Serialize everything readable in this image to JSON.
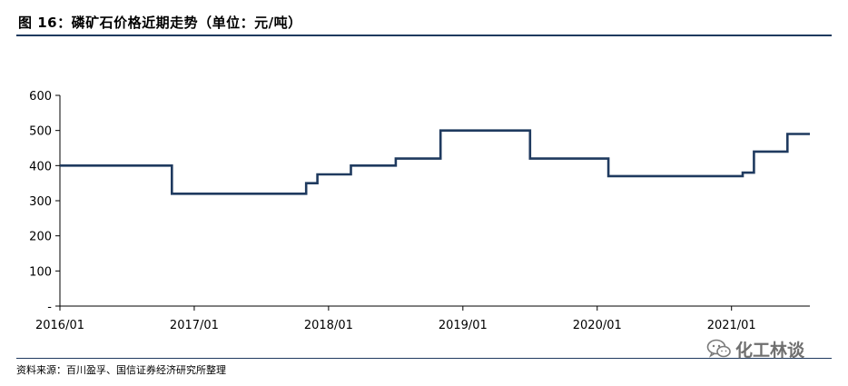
{
  "header": {
    "title": "图 16：磷矿石价格近期走势（单位：元/吨）"
  },
  "footer": {
    "source": "资料来源：百川盈孚、国信证券经济研究所整理"
  },
  "watermark": {
    "icon": "wechat-icon",
    "text": "化工林谈"
  },
  "chart_data": {
    "type": "line",
    "title": "",
    "xlabel": "",
    "ylabel": "",
    "ylim": [
      0,
      600
    ],
    "xlim": [
      "2016-01",
      "2021-08"
    ],
    "grid": false,
    "legend": "none",
    "line_color": "#1f3a5f",
    "y_ticks": [
      {
        "value": 0,
        "label": "-"
      },
      {
        "value": 100,
        "label": "100"
      },
      {
        "value": 200,
        "label": "200"
      },
      {
        "value": 300,
        "label": "300"
      },
      {
        "value": 400,
        "label": "400"
      },
      {
        "value": 500,
        "label": "500"
      },
      {
        "value": 600,
        "label": "600"
      }
    ],
    "x_ticks": [
      "2016/01",
      "2017/01",
      "2018/01",
      "2019/01",
      "2020/01",
      "2021/01"
    ],
    "series": [
      {
        "name": "",
        "step": true,
        "points": [
          {
            "x": "2016-01",
            "y": 400
          },
          {
            "x": "2016-11",
            "y": 320
          },
          {
            "x": "2017-11",
            "y": 350
          },
          {
            "x": "2017-12",
            "y": 375
          },
          {
            "x": "2018-03",
            "y": 400
          },
          {
            "x": "2018-07",
            "y": 420
          },
          {
            "x": "2018-11",
            "y": 500
          },
          {
            "x": "2019-07",
            "y": 420
          },
          {
            "x": "2020-02",
            "y": 370
          },
          {
            "x": "2021-02",
            "y": 380
          },
          {
            "x": "2021-03",
            "y": 440
          },
          {
            "x": "2021-06",
            "y": 490
          },
          {
            "x": "2021-08",
            "y": 490
          }
        ]
      }
    ]
  }
}
